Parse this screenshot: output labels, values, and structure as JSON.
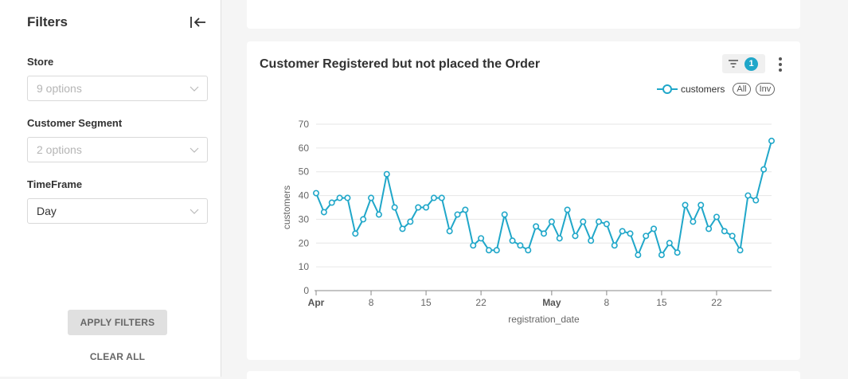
{
  "sidebar": {
    "title": "Filters",
    "fields": [
      {
        "label": "Store",
        "value": "",
        "placeholder": "9 options"
      },
      {
        "label": "Customer Segment",
        "value": "",
        "placeholder": "2 options"
      },
      {
        "label": "TimeFrame",
        "value": "Day",
        "placeholder": ""
      }
    ],
    "apply_label": "APPLY FILTERS",
    "clear_label": "CLEAR ALL"
  },
  "card": {
    "title": "Customer Registered but not placed the Order",
    "filter_count": "1",
    "legend": {
      "series_name": "customers",
      "all_label": "All",
      "inv_label": "Inv"
    }
  },
  "colors": {
    "accent": "#20a7c9",
    "line": "#20a7c9"
  },
  "chart_data": {
    "type": "line",
    "title": "",
    "xlabel": "registration_date",
    "ylabel": "customers",
    "ylim": [
      0,
      70
    ],
    "yticks": [
      0,
      10,
      20,
      30,
      40,
      50,
      60,
      70
    ],
    "x_start": "2024-04-01",
    "xticks": [
      {
        "date": "2024-04-01",
        "label": "Apr",
        "bold": true
      },
      {
        "date": "2024-04-08",
        "label": "8",
        "bold": false
      },
      {
        "date": "2024-04-15",
        "label": "15",
        "bold": false
      },
      {
        "date": "2024-04-22",
        "label": "22",
        "bold": false
      },
      {
        "date": "2024-05-01",
        "label": "May",
        "bold": true
      },
      {
        "date": "2024-05-08",
        "label": "8",
        "bold": false
      },
      {
        "date": "2024-05-15",
        "label": "15",
        "bold": false
      },
      {
        "date": "2024-05-22",
        "label": "22",
        "bold": false
      }
    ],
    "grid": true,
    "legend": "top-right",
    "series": [
      {
        "name": "customers",
        "values": [
          41,
          33,
          37,
          39,
          39,
          24,
          30,
          39,
          32,
          49,
          35,
          26,
          29,
          35,
          35,
          39,
          39,
          25,
          32,
          34,
          19,
          22,
          17,
          17,
          32,
          21,
          19,
          17,
          27,
          24,
          29,
          22,
          34,
          23,
          29,
          21,
          29,
          28,
          19,
          25,
          24,
          15,
          23,
          26,
          15,
          20,
          16,
          36,
          29,
          36,
          26,
          31,
          25,
          23,
          17,
          40,
          38,
          51,
          63
        ]
      }
    ]
  }
}
